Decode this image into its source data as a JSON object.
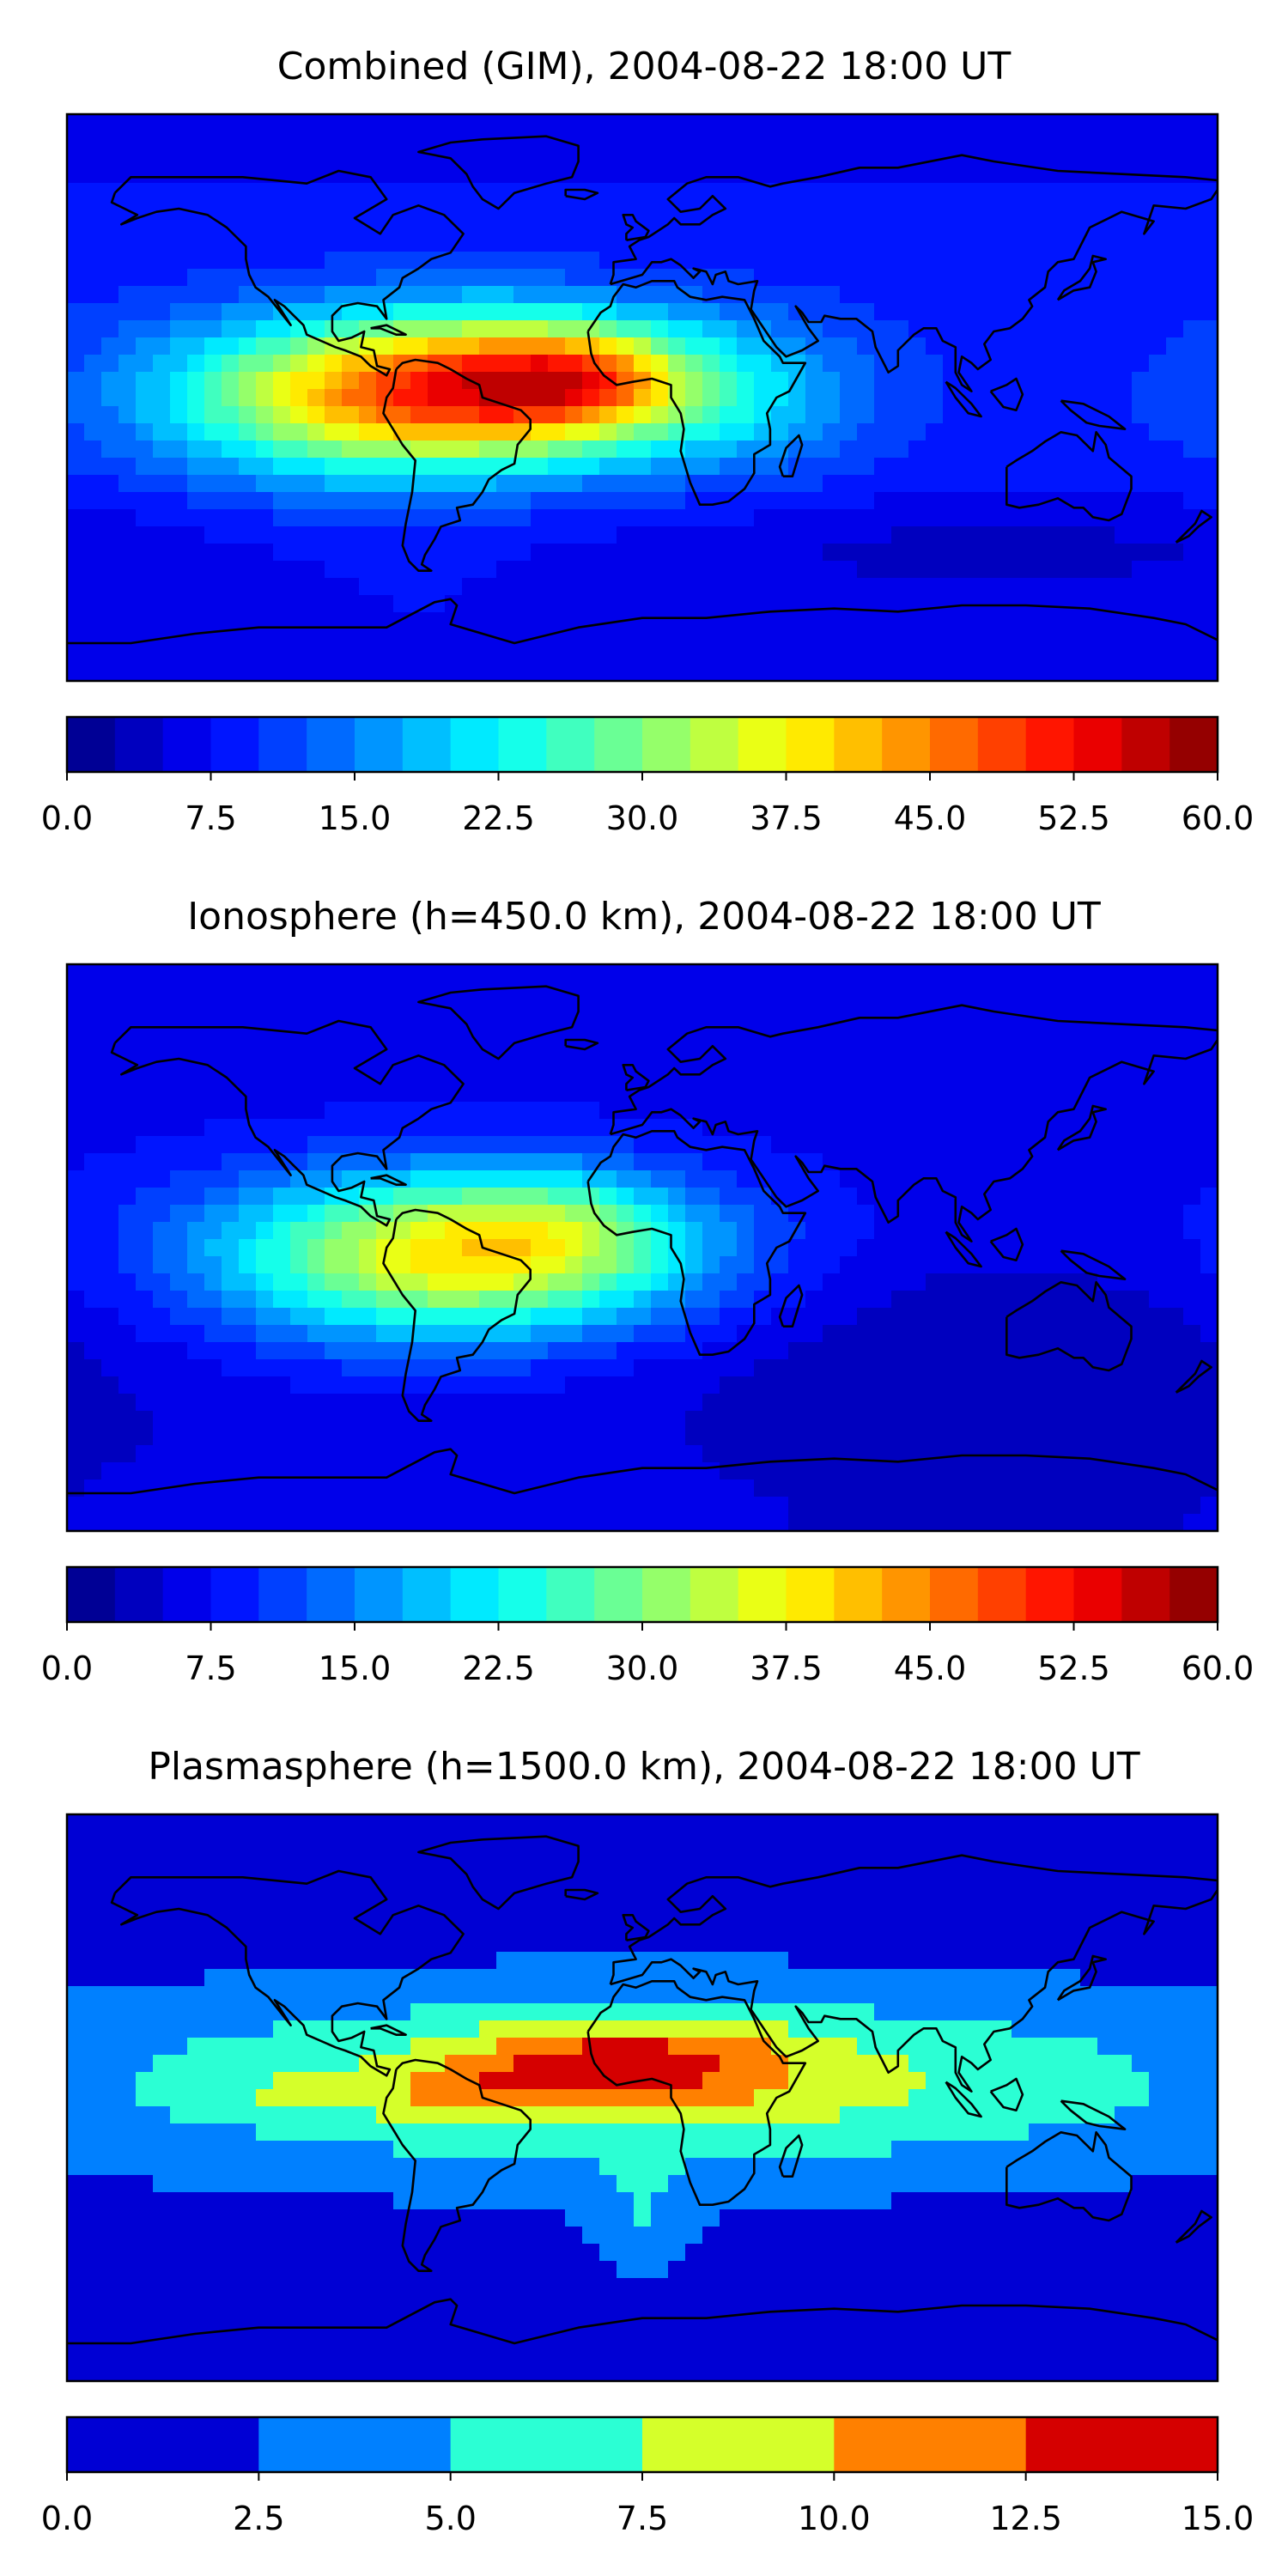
{
  "chart_data": [
    {
      "type": "heatmap",
      "title": "Combined (GIM), 2004-08-22 18:00 UT",
      "xlabel": "",
      "ylabel": "",
      "lon_range": [
        -180,
        180
      ],
      "lat_range": [
        -90,
        90
      ],
      "colorbar": {
        "min": 0.0,
        "max": 60.0,
        "step": 2.5,
        "ticks": [
          "0.0",
          "7.5",
          "15.0",
          "22.5",
          "30.0",
          "37.5",
          "45.0",
          "52.5",
          "60.0"
        ]
      },
      "background_value": 9,
      "features": [
        {
          "lon": -58,
          "lat": 3,
          "sx": 55,
          "sy": 17,
          "amp": 33
        },
        {
          "lon": -30,
          "lat": 5,
          "sx": 30,
          "sy": 14,
          "amp": 12
        },
        {
          "lon": -15,
          "lat": 6,
          "sx": 18,
          "sy": 10,
          "amp": 8
        },
        {
          "lon": -95,
          "lat": -5,
          "sx": 40,
          "sy": 18,
          "amp": 8
        },
        {
          "lon": 35,
          "lat": 0,
          "sx": 25,
          "sy": 18,
          "amp": 5
        },
        {
          "lon": 110,
          "lat": -48,
          "sx": 90,
          "sy": 12,
          "amp": -4
        }
      ]
    },
    {
      "type": "heatmap",
      "title": "Ionosphere  (h=450.0 km), 2004-08-22 18:00 UT",
      "xlabel": "",
      "ylabel": "",
      "lon_range": [
        -180,
        180
      ],
      "lat_range": [
        -90,
        90
      ],
      "colorbar": {
        "min": 0.0,
        "max": 60.0,
        "step": 2.5,
        "ticks": [
          "0.0",
          "7.5",
          "15.0",
          "22.5",
          "30.0",
          "37.5",
          "45.0",
          "52.5",
          "60.0"
        ]
      },
      "background_value": 7,
      "features": [
        {
          "lon": -50,
          "lat": -2,
          "sx": 50,
          "sy": 18,
          "amp": 28
        },
        {
          "lon": -25,
          "lat": 8,
          "sx": 25,
          "sy": 12,
          "amp": 6
        },
        {
          "lon": -100,
          "lat": -5,
          "sx": 45,
          "sy": 20,
          "amp": 6
        },
        {
          "lon": 110,
          "lat": -35,
          "sx": 80,
          "sy": 25,
          "amp": -4
        }
      ]
    },
    {
      "type": "heatmap",
      "title": "Plasmasphere (h=1500.0 km), 2004-08-22 18:00 UT",
      "xlabel": "",
      "ylabel": "",
      "lon_range": [
        -180,
        180
      ],
      "lat_range": [
        -90,
        90
      ],
      "colorbar": {
        "min": 0.0,
        "max": 15.0,
        "step": 2.5,
        "ticks": [
          "0.0",
          "2.5",
          "5.0",
          "7.5",
          "10.0",
          "12.5",
          "15.0"
        ]
      },
      "background_value": 1.5,
      "features": [
        {
          "lon": 0,
          "lat": 5,
          "sx": 130,
          "sy": 20,
          "amp": 7.5
        },
        {
          "lon": 10,
          "lat": 12,
          "sx": 28,
          "sy": 10,
          "amp": 4.5
        },
        {
          "lon": -30,
          "lat": 10,
          "sx": 22,
          "sy": 8,
          "amp": 3.5
        },
        {
          "lon": -60,
          "lat": 2,
          "sx": 18,
          "sy": 6,
          "amp": 2.5
        },
        {
          "lon": -110,
          "lat": 2,
          "sx": 8,
          "sy": 4,
          "amp": 2.5
        },
        {
          "lon": 0,
          "lat": -40,
          "sx": 12,
          "sy": 12,
          "amp": 3
        }
      ]
    }
  ]
}
